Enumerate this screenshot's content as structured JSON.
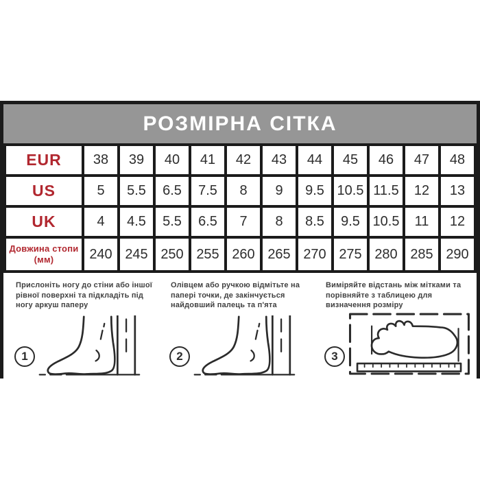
{
  "header": {
    "title": "РОЗМІРНА СІТКА"
  },
  "table": {
    "rows": [
      {
        "label": "EUR",
        "values": [
          "38",
          "39",
          "40",
          "41",
          "42",
          "43",
          "44",
          "45",
          "46",
          "47",
          "48"
        ]
      },
      {
        "label": "US",
        "values": [
          "5",
          "5.5",
          "6.5",
          "7.5",
          "8",
          "9",
          "9.5",
          "10.5",
          "11.5",
          "12",
          "13"
        ]
      },
      {
        "label": "UK",
        "values": [
          "4",
          "4.5",
          "5.5",
          "6.5",
          "7",
          "8",
          "8.5",
          "9.5",
          "10.5",
          "11",
          "12"
        ]
      },
      {
        "label": "Довжина стопи (мм)",
        "values": [
          "240",
          "245",
          "250",
          "255",
          "260",
          "265",
          "270",
          "275",
          "280",
          "285",
          "290"
        ]
      }
    ]
  },
  "steps": [
    {
      "number": "1",
      "text": "Прислоніть ногу до стіни або іншої рівної поверхні та підкладіть під ногу аркуш паперу"
    },
    {
      "number": "2",
      "text": "Олівцем або ручкою відмітьте на папері точки, де закінчується найдовший палець та п'ята"
    },
    {
      "number": "3",
      "text": "Виміряйте відстань між мітками та порівняйте з таблицею для визначення розміру"
    }
  ],
  "colors": {
    "accent_red": "#b1272f",
    "header_gray": "#969696",
    "border_black": "#1b1b1b",
    "text_dark": "#404040"
  }
}
